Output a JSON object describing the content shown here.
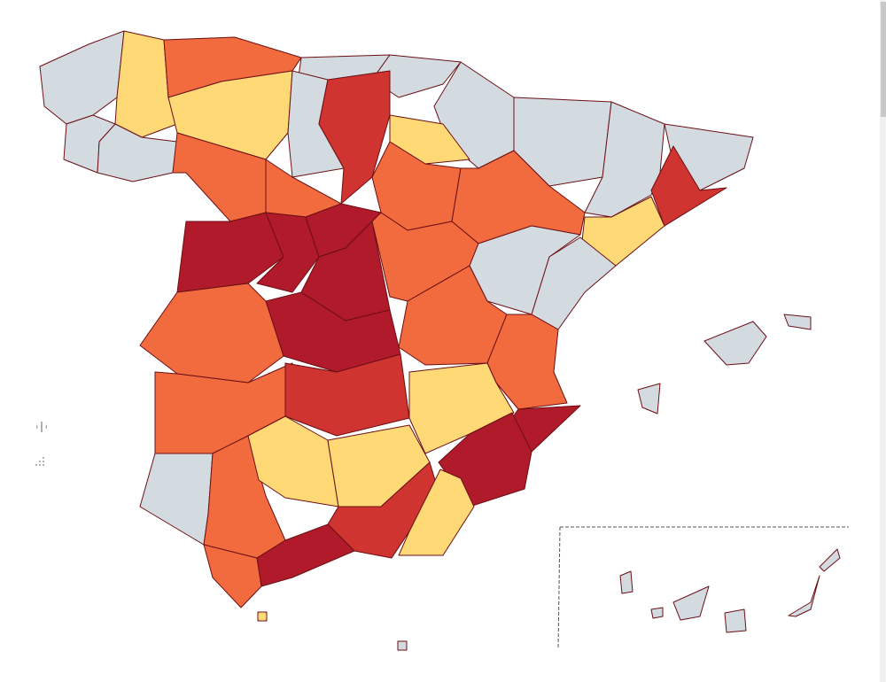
{
  "map": {
    "provinces": [
      {
        "color": "#d3dbe0"
      },
      {
        "color": "#fed976"
      },
      {
        "color": "#d3dbe0"
      },
      {
        "color": "#d3dbe0"
      },
      {
        "color": "#f26b3f"
      },
      {
        "color": "#d3dbe0"
      },
      {
        "color": "#d3dbe0"
      },
      {
        "color": "#d3dbe0"
      },
      {
        "color": "#d3dbe0"
      },
      {
        "color": "#d3dbe0"
      },
      {
        "color": "#d3dbe0"
      },
      {
        "color": "#cf3431"
      },
      {
        "color": "#fed976"
      },
      {
        "color": "#fed976"
      },
      {
        "color": "#d3dbe0"
      },
      {
        "color": "#cf3431"
      },
      {
        "color": "#fed976"
      },
      {
        "color": "#f26b3f"
      },
      {
        "color": "#f26b3f"
      },
      {
        "color": "#f26b3f"
      },
      {
        "color": "#f26b3f"
      },
      {
        "color": "#b01a2a"
      },
      {
        "color": "#b01a2a"
      },
      {
        "color": "#b01a2a"
      },
      {
        "color": "#b01a2a"
      },
      {
        "color": "#f26b3f"
      },
      {
        "color": "#d3dbe0"
      },
      {
        "color": "#d3dbe0"
      },
      {
        "color": "#f26b3f"
      },
      {
        "color": "#f26b3f"
      },
      {
        "color": "#b01a2a"
      },
      {
        "color": "#b01a2a"
      },
      {
        "color": "#f26b3f"
      },
      {
        "color": "#f26b3f"
      },
      {
        "color": "#cf3431"
      },
      {
        "color": "#fed976"
      },
      {
        "color": "#b01a2a"
      },
      {
        "color": "#d3dbe0"
      },
      {
        "color": "#f26b3f"
      },
      {
        "color": "#fed976"
      },
      {
        "color": "#fed976"
      },
      {
        "color": "#cf3431"
      },
      {
        "color": "#fed976"
      },
      {
        "color": "#b01a2a"
      },
      {
        "color": "#f26b3f"
      },
      {
        "color": "#d3dbe0"
      },
      {
        "color": "#d3dbe0"
      },
      {
        "color": "#d3dbe0"
      },
      {
        "color": "#d3dbe0"
      },
      {
        "color": "#d3dbe0"
      },
      {
        "color": "#d3dbe0"
      },
      {
        "color": "#d3dbe0"
      },
      {
        "color": "#d3dbe0"
      },
      {
        "color": "#d3dbe0"
      },
      {
        "color": "#fed976"
      },
      {
        "color": "#d3dbe0"
      }
    ]
  }
}
